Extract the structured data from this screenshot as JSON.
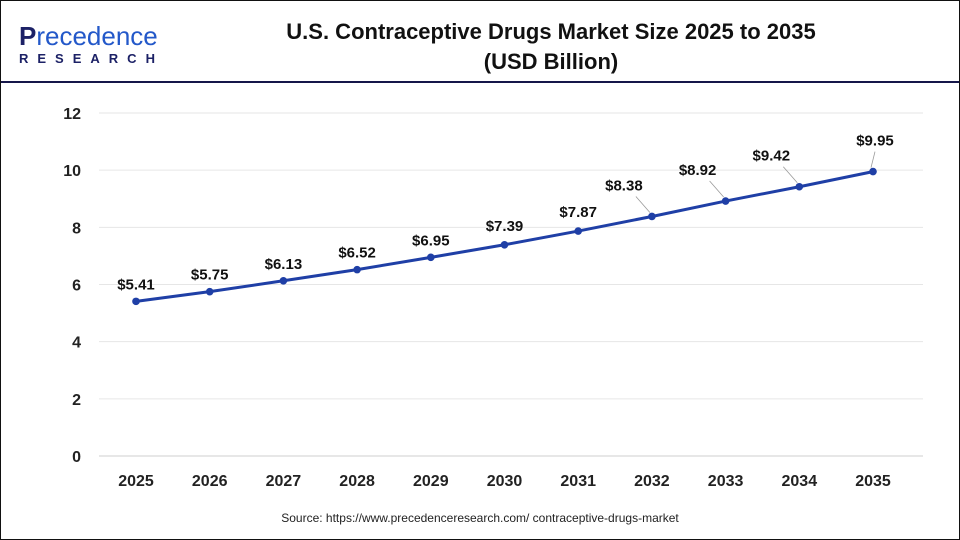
{
  "logo": {
    "first": "P",
    "rest": "recedence",
    "sub": "RESEARCH"
  },
  "title_line1": "U.S. Contraceptive Drugs Market Size 2025 to 2035",
  "title_line2": "(USD Billion)",
  "source": "Source: https://www.precedenceresearch.com/ contraceptive-drugs-market",
  "chart_data": {
    "type": "line",
    "title": "U.S. Contraceptive Drugs Market Size 2025 to 2035 (USD Billion)",
    "xlabel": "",
    "ylabel": "",
    "categories": [
      "2025",
      "2026",
      "2027",
      "2028",
      "2029",
      "2030",
      "2031",
      "2032",
      "2033",
      "2034",
      "2035"
    ],
    "series": [
      {
        "name": "Market Size",
        "values": [
          5.41,
          5.75,
          6.13,
          6.52,
          6.95,
          7.39,
          7.87,
          8.38,
          8.92,
          9.42,
          9.95
        ],
        "color": "#1f3fa6"
      }
    ],
    "data_labels": [
      "$5.41",
      "$5.75",
      "$6.13",
      "$6.52",
      "$6.95",
      "$7.39",
      "$7.87",
      "$8.38",
      "$8.92",
      "$9.42",
      "$9.95"
    ],
    "ylim": [
      0,
      12
    ],
    "yticks": [
      0,
      2,
      4,
      6,
      8,
      10,
      12
    ],
    "grid": true,
    "legend": "none"
  }
}
